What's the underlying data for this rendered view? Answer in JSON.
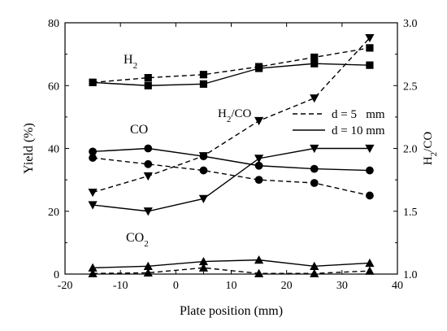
{
  "chart_data": {
    "type": "line",
    "x_axis": {
      "label": "Plate position (mm)",
      "range": [
        -20,
        40
      ],
      "ticks": [
        -20,
        -10,
        0,
        10,
        20,
        30,
        40
      ]
    },
    "y_axis_left": {
      "label": "Yield (%)",
      "range": [
        0,
        80
      ],
      "ticks": [
        0,
        20,
        40,
        60,
        80
      ]
    },
    "y_axis_right": {
      "label_main": "H",
      "label_sub": "2",
      "label_tail": "/CO",
      "range": [
        1.0,
        3.0
      ],
      "ticks": [
        "1.0",
        "1.5",
        "2.0",
        "2.5",
        "3.0"
      ]
    },
    "x": [
      -15,
      -5,
      5,
      15,
      25,
      35
    ],
    "series": [
      {
        "group": "H2",
        "dash": "d5",
        "marker": "square",
        "axis": "left",
        "values": [
          61,
          62.5,
          63.5,
          66,
          69,
          72
        ]
      },
      {
        "group": "H2",
        "dash": "d10",
        "marker": "square",
        "axis": "left",
        "values": [
          61,
          60,
          60.5,
          65.5,
          67,
          66.5
        ]
      },
      {
        "group": "CO",
        "dash": "d5",
        "marker": "circle",
        "axis": "left",
        "values": [
          37,
          35,
          33,
          30,
          29,
          25
        ]
      },
      {
        "group": "CO",
        "dash": "d10",
        "marker": "circle",
        "axis": "left",
        "values": [
          39,
          40,
          37.5,
          34.5,
          33.5,
          33
        ]
      },
      {
        "group": "CO2",
        "dash": "d5",
        "marker": "triangle-up",
        "axis": "left",
        "values": [
          0.2,
          0.4,
          2,
          0.2,
          0.2,
          1
        ]
      },
      {
        "group": "CO2",
        "dash": "d10",
        "marker": "triangle-up",
        "axis": "left",
        "values": [
          2,
          2.5,
          4,
          4.5,
          2.5,
          3.5
        ]
      },
      {
        "group": "H2/CO",
        "dash": "d5",
        "marker": "triangle-down",
        "axis": "right",
        "values": [
          1.65,
          1.78,
          1.94,
          2.22,
          2.4,
          2.88
        ]
      },
      {
        "group": "H2/CO",
        "dash": "d10",
        "marker": "triangle-down",
        "axis": "right",
        "values": [
          1.55,
          1.5,
          1.6,
          1.92,
          2.0,
          2.0
        ]
      }
    ],
    "annotations": {
      "h2": {
        "main": "H",
        "sub": "2",
        "tail": ""
      },
      "co": {
        "main": "CO",
        "sub": "",
        "tail": ""
      },
      "co2": {
        "main": "CO",
        "sub": "2",
        "tail": ""
      },
      "h2co": {
        "main": "H",
        "sub": "2",
        "tail": "/CO"
      }
    },
    "legend": {
      "placement": "right-middle",
      "entries": [
        {
          "key": "d5",
          "label": "d = 5   mm"
        },
        {
          "key": "d10",
          "label": "d = 10 mm"
        }
      ]
    }
  }
}
